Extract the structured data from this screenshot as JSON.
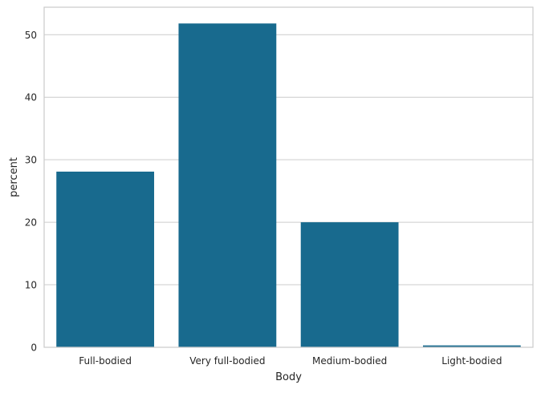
{
  "chart_data": {
    "type": "bar",
    "categories": [
      "Full-bodied",
      "Very full-bodied",
      "Medium-bodied",
      "Light-bodied"
    ],
    "values": [
      28.1,
      51.8,
      20.0,
      0.3
    ],
    "xlabel": "Body",
    "ylabel": "percent",
    "ylim": [
      0,
      54.4
    ],
    "yticks": [
      0,
      10,
      20,
      30,
      40,
      50
    ],
    "grid": true,
    "legend": false,
    "colors": {
      "bar": "#186A8E",
      "grid": "#CCCCCC",
      "spine": "#CCCCCC",
      "background": "#FFFFFF"
    }
  }
}
